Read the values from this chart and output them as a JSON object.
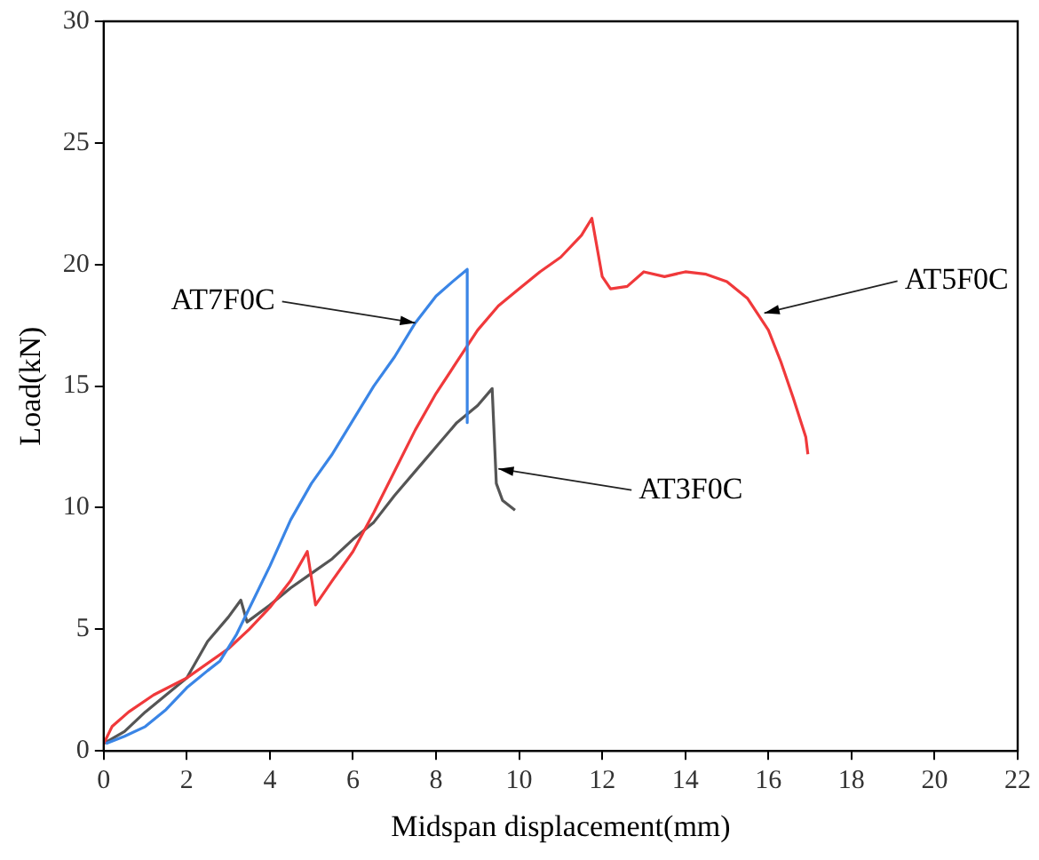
{
  "chart_data": {
    "type": "line",
    "xlabel": "Midspan displacement(mm)",
    "ylabel": "Load(kN)",
    "xlim": [
      0,
      22
    ],
    "xticks": [
      0,
      2,
      4,
      6,
      8,
      10,
      12,
      14,
      16,
      18,
      20,
      22
    ],
    "ylim": [
      0,
      30
    ],
    "yticks": [
      0,
      5,
      10,
      15,
      20,
      25,
      30
    ],
    "grid": false,
    "legend": false,
    "marker": "none",
    "line_style": "solid",
    "series": [
      {
        "color": "#3a85e6",
        "x": [
          0.05,
          0.5,
          1,
          1.5,
          2,
          2.5,
          2.8,
          3.2,
          3.6,
          4,
          4.5,
          5,
          5.5,
          6,
          6.5,
          7,
          7.5,
          8,
          8.4,
          8.75,
          8.75
        ],
        "values": [
          0.3,
          0.6,
          1,
          1.7,
          2.6,
          3.3,
          3.7,
          4.8,
          6.2,
          7.6,
          9.5,
          11,
          12.2,
          13.6,
          15,
          16.2,
          17.6,
          18.7,
          19.3,
          19.8,
          13.5
        ]
      },
      {
        "color": "#f0393b",
        "x": [
          0,
          0.2,
          0.6,
          1.2,
          2,
          3,
          3.5,
          4,
          4.5,
          4.9,
          5.1,
          5.5,
          6,
          6.5,
          7,
          7.5,
          8,
          8.5,
          9,
          9.5,
          10,
          10.5,
          11,
          11.5,
          11.75,
          12,
          12.2,
          12.6,
          13,
          13.5,
          14,
          14.5,
          15,
          15.5,
          16,
          16.3,
          16.6,
          16.9,
          16.95
        ],
        "values": [
          0.3,
          1,
          1.6,
          2.3,
          3,
          4.2,
          5,
          5.9,
          7,
          8.2,
          6,
          7,
          8.2,
          9.8,
          11.5,
          13.2,
          14.7,
          16,
          17.3,
          18.3,
          19,
          19.7,
          20.3,
          21.2,
          21.9,
          19.5,
          19,
          19.1,
          19.7,
          19.5,
          19.7,
          19.6,
          19.3,
          18.6,
          17.3,
          16,
          14.5,
          12.9,
          12.2
        ]
      },
      {
        "color": "#555555",
        "x": [
          0,
          0.5,
          1,
          1.5,
          2,
          2.5,
          3,
          3.3,
          3.45,
          4,
          4.5,
          5,
          5.5,
          6,
          6.5,
          7,
          7.5,
          8,
          8.5,
          9,
          9.35,
          9.45,
          9.6,
          9.9
        ],
        "values": [
          0.3,
          0.8,
          1.6,
          2.3,
          3,
          4.5,
          5.5,
          6.2,
          5.3,
          6,
          6.7,
          7.3,
          7.9,
          8.7,
          9.4,
          10.5,
          11.5,
          12.5,
          13.5,
          14.2,
          14.9,
          11,
          10.3,
          9.9
        ]
      }
    ],
    "annotations": [
      {
        "text": "AT7F0C",
        "x": 7.5,
        "y": 17.6
      },
      {
        "text": "AT5F0C",
        "x": 15.9,
        "y": 18
      },
      {
        "text": "AT3F0C",
        "x": 9.5,
        "y": 11.6
      }
    ]
  }
}
